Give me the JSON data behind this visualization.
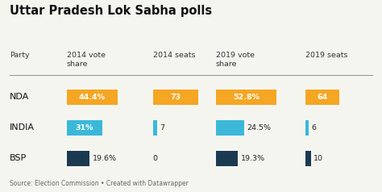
{
  "title": "Uttar Pradesh Lok Sabha polls",
  "parties": [
    "NDA",
    "INDIA",
    "BSP"
  ],
  "vote_share_2014": [
    44.4,
    31.0,
    19.6
  ],
  "seats_2014": [
    73,
    7,
    0
  ],
  "vote_share_2019": [
    52.8,
    24.5,
    19.3
  ],
  "seats_2019": [
    64,
    6,
    10
  ],
  "vote_share_labels_14": [
    "44.4%",
    "31%",
    "19.6%"
  ],
  "vote_share_labels_19": [
    "52.8%",
    "24.5%",
    "19.3%"
  ],
  "colors": [
    "#F5A623",
    "#3BB8D8",
    "#1B3A52"
  ],
  "max_vote_share": 55,
  "max_seats": 80,
  "bg_color": "#f5f5f0",
  "source_text": "Source: Election Commission • Created with Datawrapper"
}
